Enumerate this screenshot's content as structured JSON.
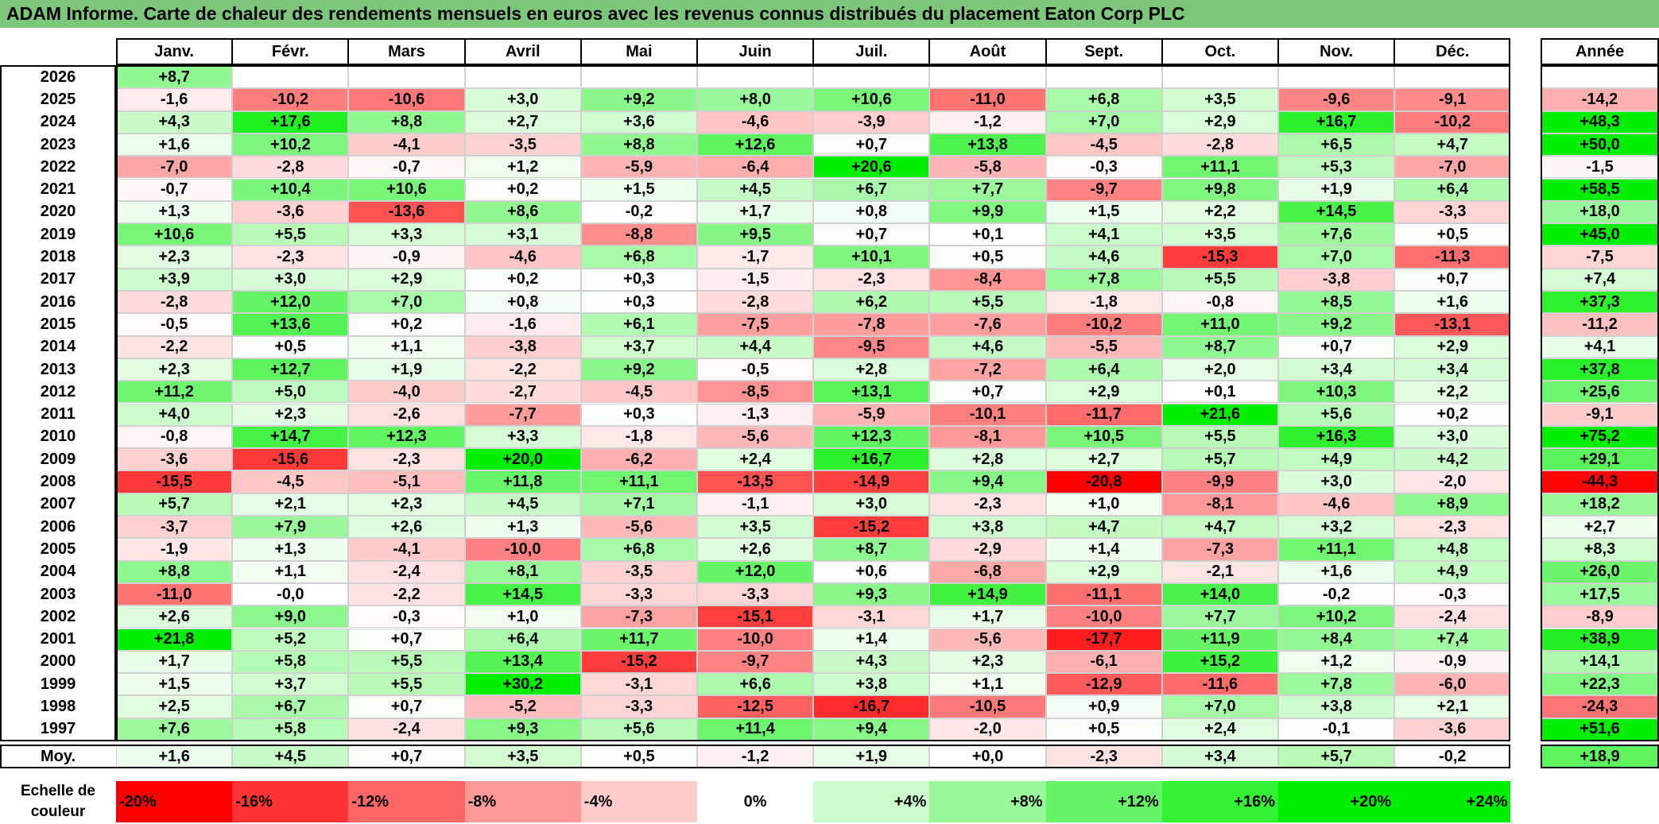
{
  "title": "ADAM Informe. Carte de chaleur des rendements mensuels en euros avec les revenus connus distribués du placement Eaton Corp PLC",
  "chart_data": {
    "type": "heatmap",
    "title": "ADAM Informe. Carte de chaleur des rendements mensuels en euros avec les revenus connus distribués du placement Eaton Corp PLC",
    "columns": [
      "Janv.",
      "Févr.",
      "Mars",
      "Avril",
      "Mai",
      "Juin",
      "Juil.",
      "Août",
      "Sept.",
      "Oct.",
      "Nov.",
      "Déc."
    ],
    "year_column_label": "Année",
    "rows": [
      {
        "year": "2026",
        "values": [
          "+8,7",
          null,
          null,
          null,
          null,
          null,
          null,
          null,
          null,
          null,
          null,
          null
        ],
        "annual": null
      },
      {
        "year": "2025",
        "values": [
          "-1,6",
          "-10,2",
          "-10,6",
          "+3,0",
          "+9,2",
          "+8,0",
          "+10,6",
          "-11,0",
          "+6,8",
          "+3,5",
          "-9,6",
          "-9,1"
        ],
        "annual": "-14,2"
      },
      {
        "year": "2024",
        "values": [
          "+4,3",
          "+17,6",
          "+8,8",
          "+2,7",
          "+3,6",
          "-4,6",
          "-3,9",
          "-1,2",
          "+7,0",
          "+2,9",
          "+16,7",
          "-10,2"
        ],
        "annual": "+48,3"
      },
      {
        "year": "2023",
        "values": [
          "+1,6",
          "+10,2",
          "-4,1",
          "-3,5",
          "+8,8",
          "+12,6",
          "+0,7",
          "+13,8",
          "-4,5",
          "-2,8",
          "+6,5",
          "+4,7"
        ],
        "annual": "+50,0"
      },
      {
        "year": "2022",
        "values": [
          "-7,0",
          "-2,8",
          "-0,7",
          "+1,2",
          "-5,9",
          "-6,4",
          "+20,6",
          "-5,8",
          "-0,3",
          "+11,1",
          "+5,3",
          "-7,0"
        ],
        "annual": "-1,5"
      },
      {
        "year": "2021",
        "values": [
          "-0,7",
          "+10,4",
          "+10,6",
          "+0,2",
          "+1,5",
          "+4,5",
          "+6,7",
          "+7,7",
          "-9,7",
          "+9,8",
          "+1,9",
          "+6,4"
        ],
        "annual": "+58,5"
      },
      {
        "year": "2020",
        "values": [
          "+1,3",
          "-3,6",
          "-13,6",
          "+8,6",
          "-0,2",
          "+1,7",
          "+0,8",
          "+9,9",
          "+1,5",
          "+2,2",
          "+14,5",
          "-3,3"
        ],
        "annual": "+18,0"
      },
      {
        "year": "2019",
        "values": [
          "+10,6",
          "+5,5",
          "+3,3",
          "+3,1",
          "-8,8",
          "+9,5",
          "+0,7",
          "+0,1",
          "+4,1",
          "+3,5",
          "+7,6",
          "+0,5"
        ],
        "annual": "+45,0"
      },
      {
        "year": "2018",
        "values": [
          "+2,3",
          "-2,3",
          "-0,9",
          "-4,6",
          "+6,8",
          "-1,7",
          "+10,1",
          "+0,5",
          "+4,6",
          "-15,3",
          "+7,0",
          "-11,3"
        ],
        "annual": "-7,5"
      },
      {
        "year": "2017",
        "values": [
          "+3,9",
          "+3,0",
          "+2,9",
          "+0,2",
          "+0,3",
          "-1,5",
          "-2,3",
          "-8,4",
          "+7,8",
          "+5,5",
          "-3,8",
          "+0,7"
        ],
        "annual": "+7,4"
      },
      {
        "year": "2016",
        "values": [
          "-2,8",
          "+12,0",
          "+7,0",
          "+0,8",
          "+0,3",
          "-2,8",
          "+6,2",
          "+5,5",
          "-1,8",
          "-0,8",
          "+8,5",
          "+1,6"
        ],
        "annual": "+37,3"
      },
      {
        "year": "2015",
        "values": [
          "-0,5",
          "+13,6",
          "+0,2",
          "-1,6",
          "+6,1",
          "-7,5",
          "-7,8",
          "-7,6",
          "-10,2",
          "+11,0",
          "+9,2",
          "-13,1"
        ],
        "annual": "-11,2"
      },
      {
        "year": "2014",
        "values": [
          "-2,2",
          "+0,5",
          "+1,1",
          "-3,8",
          "+3,7",
          "+4,4",
          "-9,5",
          "+4,6",
          "-5,5",
          "+8,7",
          "+0,7",
          "+2,9"
        ],
        "annual": "+4,1"
      },
      {
        "year": "2013",
        "values": [
          "+2,3",
          "+12,7",
          "+1,9",
          "-2,2",
          "+9,2",
          "-0,5",
          "+2,8",
          "-7,2",
          "+6,4",
          "+2,0",
          "+3,4",
          "+3,4"
        ],
        "annual": "+37,8"
      },
      {
        "year": "2012",
        "values": [
          "+11,2",
          "+5,0",
          "-4,0",
          "-2,7",
          "-4,5",
          "-8,5",
          "+13,1",
          "+0,7",
          "+2,9",
          "+0,1",
          "+10,3",
          "+2,2"
        ],
        "annual": "+25,6"
      },
      {
        "year": "2011",
        "values": [
          "+4,0",
          "+2,3",
          "-2,6",
          "-7,7",
          "+0,3",
          "-1,3",
          "-5,9",
          "-10,1",
          "-11,7",
          "+21,6",
          "+5,6",
          "+0,2"
        ],
        "annual": "-9,1"
      },
      {
        "year": "2010",
        "values": [
          "-0,8",
          "+14,7",
          "+12,3",
          "+3,3",
          "-1,8",
          "-5,6",
          "+12,3",
          "-8,1",
          "+10,5",
          "+5,5",
          "+16,3",
          "+3,0"
        ],
        "annual": "+75,2"
      },
      {
        "year": "2009",
        "values": [
          "-3,6",
          "-15,6",
          "-2,3",
          "+20,0",
          "-6,2",
          "+2,4",
          "+16,7",
          "+2,8",
          "+2,7",
          "+5,7",
          "+4,9",
          "+4,2"
        ],
        "annual": "+29,1"
      },
      {
        "year": "2008",
        "values": [
          "-15,5",
          "-4,5",
          "-5,1",
          "+11,8",
          "+11,1",
          "-13,5",
          "-14,9",
          "+9,4",
          "-20,8",
          "-9,9",
          "+3,0",
          "-2,0"
        ],
        "annual": "-44,3"
      },
      {
        "year": "2007",
        "values": [
          "+5,7",
          "+2,1",
          "+2,3",
          "+4,5",
          "+7,1",
          "-1,1",
          "+3,0",
          "-2,3",
          "+1,0",
          "-8,1",
          "-4,6",
          "+8,9"
        ],
        "annual": "+18,2"
      },
      {
        "year": "2006",
        "values": [
          "-3,7",
          "+7,9",
          "+2,6",
          "+1,3",
          "-5,6",
          "+3,5",
          "-15,2",
          "+3,8",
          "+4,7",
          "+4,7",
          "+3,2",
          "-2,3"
        ],
        "annual": "+2,7"
      },
      {
        "year": "2005",
        "values": [
          "-1,9",
          "+1,3",
          "-4,1",
          "-10,0",
          "+6,8",
          "+2,6",
          "+8,7",
          "-2,9",
          "+1,4",
          "-7,3",
          "+11,1",
          "+4,8"
        ],
        "annual": "+8,3"
      },
      {
        "year": "2004",
        "values": [
          "+8,8",
          "+1,1",
          "-2,4",
          "+8,1",
          "-3,5",
          "+12,0",
          "+0,6",
          "-6,8",
          "+2,9",
          "-2,1",
          "+1,6",
          "+4,9"
        ],
        "annual": "+26,0"
      },
      {
        "year": "2003",
        "values": [
          "-11,0",
          "-0,0",
          "-2,2",
          "+14,5",
          "-3,3",
          "-3,3",
          "+9,3",
          "+14,9",
          "-11,1",
          "+14,0",
          "-0,2",
          "-0,3"
        ],
        "annual": "+17,5"
      },
      {
        "year": "2002",
        "values": [
          "+2,6",
          "+9,0",
          "-0,3",
          "+1,0",
          "-7,3",
          "-15,1",
          "-3,1",
          "+1,7",
          "-10,0",
          "+7,7",
          "+10,2",
          "-2,4"
        ],
        "annual": "-8,9"
      },
      {
        "year": "2001",
        "values": [
          "+21,8",
          "+5,2",
          "+0,7",
          "+6,4",
          "+11,7",
          "-10,0",
          "+1,4",
          "-5,6",
          "-17,7",
          "+11,9",
          "+8,4",
          "+7,4"
        ],
        "annual": "+38,9"
      },
      {
        "year": "2000",
        "values": [
          "+1,7",
          "+5,8",
          "+5,5",
          "+13,4",
          "-15,2",
          "-9,7",
          "+4,3",
          "+2,3",
          "-6,1",
          "+15,2",
          "+1,2",
          "-0,9"
        ],
        "annual": "+14,1"
      },
      {
        "year": "1999",
        "values": [
          "+1,5",
          "+3,7",
          "+5,5",
          "+30,2",
          "-3,1",
          "+6,6",
          "+3,8",
          "+1,1",
          "-12,9",
          "-11,6",
          "+7,8",
          "-6,0"
        ],
        "annual": "+22,3"
      },
      {
        "year": "1998",
        "values": [
          "+2,5",
          "+6,7",
          "+0,7",
          "-5,2",
          "-3,3",
          "-12,5",
          "-16,7",
          "-10,5",
          "+0,9",
          "+7,0",
          "+3,8",
          "+2,1"
        ],
        "annual": "-24,3"
      },
      {
        "year": "1997",
        "values": [
          "+7,6",
          "+5,8",
          "-2,4",
          "+9,3",
          "+5,6",
          "+11,4",
          "+9,4",
          "-2,0",
          "+0,5",
          "+2,4",
          "-0,1",
          "-3,6"
        ],
        "annual": "+51,6"
      }
    ],
    "average": {
      "label": "Moy.",
      "values": [
        "+1,6",
        "+4,5",
        "+0,7",
        "+3,5",
        "+0,5",
        "-1,2",
        "+1,9",
        "+0,0",
        "-2,3",
        "+3,4",
        "+5,7",
        "-0,2"
      ],
      "annual": "+18,9"
    },
    "scale": {
      "label": "Echelle de couleur",
      "steps": [
        "-20%",
        "-16%",
        "-12%",
        "-8%",
        "-4%",
        "0%",
        "+4%",
        "+8%",
        "+12%",
        "+16%",
        "+20%",
        "+24%"
      ],
      "values": [
        -20,
        -16,
        -12,
        -8,
        -4,
        0,
        4,
        8,
        12,
        16,
        20,
        24
      ]
    },
    "colors": {
      "negative": "#ff0000",
      "neutral": "#ffffff",
      "positive": "#00ee00",
      "title_bg": "#7dc77a"
    }
  }
}
